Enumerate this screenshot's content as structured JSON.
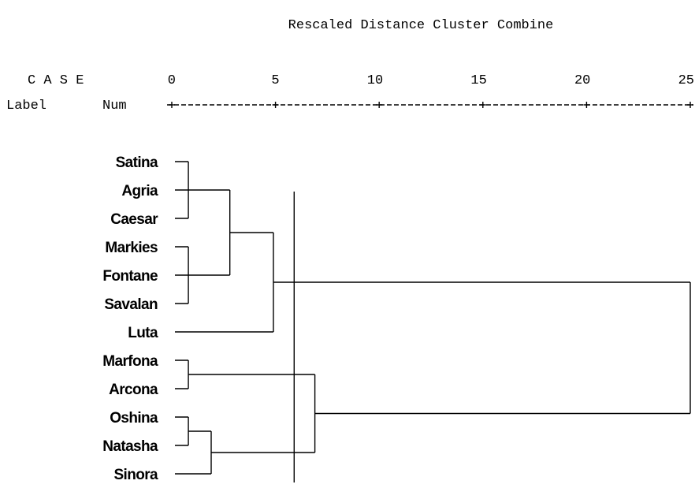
{
  "chart_data": {
    "type": "dendrogram",
    "title": "Rescaled Distance Cluster Combine",
    "case_header": "C A S E",
    "label_header": "Label",
    "num_header": "Num",
    "xlim": [
      0,
      25
    ],
    "xticks": [
      0,
      5,
      10,
      15,
      20,
      25
    ],
    "cut": 5.9,
    "tree": {
      "distance": 25,
      "children": [
        {
          "distance": 4.9,
          "children": [
            {
              "distance": 2.8,
              "children": [
                {
                  "distance": 0.8,
                  "children": [
                    {
                      "label": "Satina"
                    },
                    {
                      "label": "Agria"
                    },
                    {
                      "label": "Caesar"
                    }
                  ]
                },
                {
                  "distance": 0.8,
                  "children": [
                    {
                      "label": "Markies"
                    },
                    {
                      "label": "Fontane"
                    },
                    {
                      "label": "Savalan"
                    }
                  ]
                }
              ]
            },
            {
              "label": "Luta"
            }
          ]
        },
        {
          "distance": 6.9,
          "children": [
            {
              "distance": 0.8,
              "children": [
                {
                  "label": "Marfona"
                },
                {
                  "label": "Arcona"
                }
              ]
            },
            {
              "distance": 1.9,
              "children": [
                {
                  "distance": 0.8,
                  "children": [
                    {
                      "label": "Oshina"
                    },
                    {
                      "label": "Natasha"
                    }
                  ]
                },
                {
                  "label": "Sinora"
                }
              ]
            }
          ]
        }
      ]
    }
  }
}
